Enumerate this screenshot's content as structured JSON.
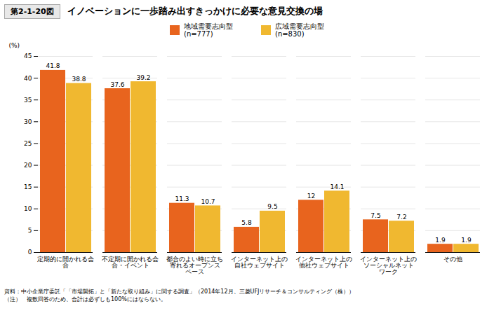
{
  "chart_data": {
    "type": "bar",
    "title": "イノベーションに一歩踏み出すきっかけに必要な意見交換の場",
    "annotations": [
      "第2-1-20図",
      "資料：中小企業庁委託「「市場開拓」と「新たな取り組み」に関する調査」（2014年12月、三菱UFJリサーチ＆コンサルティング（株））",
      "（注）　複数回答のため、合計は必ずしも100%にはならない。"
    ],
    "ylabel": "(%)",
    "categories": [
      "定期的に開かれる会\n合",
      "不定期に開かれる会\n合・イベント",
      "都合のよい時に立ち\n寄れるオープンス\nペース",
      "インターネット上の\n自社ウェブサイト",
      "インターネット上の\n他社ウェブサイト",
      "インターネット上の\nソーシャルネット\nワーク",
      "その他"
    ],
    "series": [
      {
        "name": "地域需要志向型\n(n=777)",
        "color": "#E8641E",
        "values": [
          41.8,
          37.6,
          11.3,
          5.8,
          12.0,
          7.5,
          1.9
        ]
      },
      {
        "name": "広域需要志向型\n(n=830)",
        "color": "#F0B830",
        "values": [
          38.8,
          39.2,
          10.7,
          9.5,
          14.1,
          7.2,
          1.9
        ]
      }
    ],
    "ylim": [
      0,
      45
    ],
    "yticks": [
      0,
      5,
      10,
      15,
      20,
      25,
      30,
      35,
      40,
      45
    ],
    "grid": true,
    "legend": "top",
    "data_labels": true
  }
}
